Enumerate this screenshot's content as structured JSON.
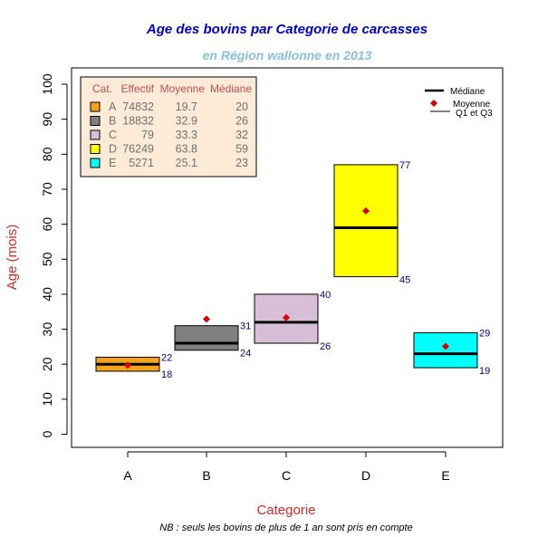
{
  "title": "Age des bovins par Categorie de carcasses",
  "subtitle": "en Région wallonne en 2013",
  "xlabel": "Categorie",
  "ylabel": "Age (mois)",
  "note": "NB : seuls les bovins de plus de 1 an sont pris en compte",
  "legend_table": {
    "headers": [
      "Cat.",
      "Effectif",
      "Moyenne",
      "Médiane"
    ],
    "rows": [
      {
        "cat": "A",
        "effectif": "74832",
        "moyenne": "19.7",
        "mediane": "20",
        "color": "#f5a31a"
      },
      {
        "cat": "B",
        "effectif": "18832",
        "moyenne": "32.9",
        "mediane": "26",
        "color": "#808080"
      },
      {
        "cat": "C",
        "effectif": "79",
        "moyenne": "33.3",
        "mediane": "32",
        "color": "#d8bfd8"
      },
      {
        "cat": "D",
        "effectif": "76249",
        "moyenne": "63.8",
        "mediane": "59",
        "color": "#ffff00"
      },
      {
        "cat": "E",
        "effectif": "5271",
        "moyenne": "25.1",
        "mediane": "23",
        "color": "#00ffff"
      }
    ]
  },
  "legend_symbols": {
    "median": "Médiane",
    "mean": "Moyenne",
    "quartiles": "Q1 et Q3"
  },
  "chart_data": {
    "type": "box",
    "categories": [
      "A",
      "B",
      "C",
      "D",
      "E"
    ],
    "q1": [
      18,
      24,
      26,
      45,
      19
    ],
    "q3": [
      22,
      31,
      40,
      77,
      29
    ],
    "median": [
      20,
      26,
      32,
      59,
      23
    ],
    "mean": [
      19.7,
      32.9,
      33.3,
      63.8,
      25.1
    ],
    "colors": [
      "#f5a31a",
      "#808080",
      "#d8bfd8",
      "#ffff00",
      "#00ffff"
    ],
    "yticks": [
      0,
      10,
      20,
      30,
      40,
      50,
      60,
      70,
      80,
      90,
      100
    ],
    "ylim": [
      -4,
      104
    ],
    "mean_color": "#dd0000"
  }
}
